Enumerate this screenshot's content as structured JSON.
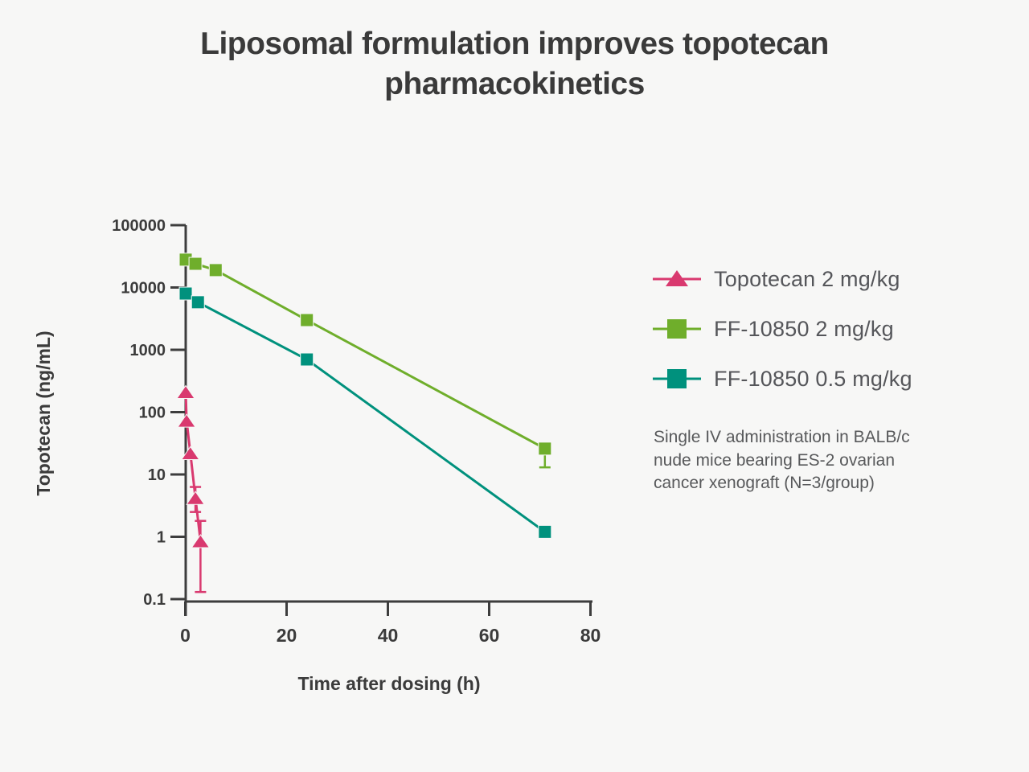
{
  "chart_data": {
    "type": "line",
    "title": "Liposomal formulation improves topotecan pharmacokinetics",
    "xlabel": "Time after dosing (h)",
    "ylabel": "Topotecan (ng/mL)",
    "x_axis": {
      "range": [
        0,
        80
      ],
      "ticks": [
        0,
        20,
        40,
        60,
        80
      ],
      "scale": "linear"
    },
    "y_axis": {
      "range": [
        0.1,
        100000
      ],
      "tick_labels": [
        "100000",
        "10000",
        "1000",
        "100",
        "10",
        "1",
        "0.1"
      ],
      "scale": "log"
    },
    "grid": false,
    "legend_position": "right",
    "series": [
      {
        "name": "Topotecan 2 mg/kg",
        "color": "#d9396f",
        "marker": "triangle",
        "points": [
          {
            "t": 0.083,
            "v": 210
          },
          {
            "t": 0.25,
            "v": 73
          },
          {
            "t": 1,
            "v": 22
          },
          {
            "t": 2,
            "v": 4.2
          },
          {
            "t": 3,
            "v": 0.85
          }
        ],
        "error_bars": [
          {
            "t": 2,
            "v": 4.2,
            "lo": 2.5,
            "hi": 6.3
          },
          {
            "t": 3,
            "v": 0.85,
            "lo": 0.13,
            "hi": 1.8
          }
        ]
      },
      {
        "name": "FF-10850 2 mg/kg",
        "color": "#6fae2b",
        "marker": "square",
        "points": [
          {
            "t": 0.083,
            "v": 28000
          },
          {
            "t": 2,
            "v": 24000
          },
          {
            "t": 6,
            "v": 19000
          },
          {
            "t": 24,
            "v": 3000
          },
          {
            "t": 71,
            "v": 26
          }
        ],
        "error_bars": [
          {
            "t": 71,
            "v": 26,
            "lo": 13,
            "hi": null
          }
        ]
      },
      {
        "name": "FF-10850 0.5 mg/kg",
        "color": "#00917d",
        "marker": "square",
        "points": [
          {
            "t": 0.083,
            "v": 8000
          },
          {
            "t": 2.5,
            "v": 5800
          },
          {
            "t": 24,
            "v": 700
          },
          {
            "t": 71,
            "v": 1.2
          }
        ],
        "error_bars": []
      }
    ]
  },
  "note": "Single IV administration in BALB/c nude mice bearing ES-2 ovarian cancer xenograft (N=3/group)",
  "colors": {
    "background": "#f7f7f6",
    "axis": "#3d3d3d",
    "tick_text": "#3b3b3b",
    "title_text": "#3a3a3a",
    "legend_text": "#55565a",
    "note_text": "#58595b"
  }
}
